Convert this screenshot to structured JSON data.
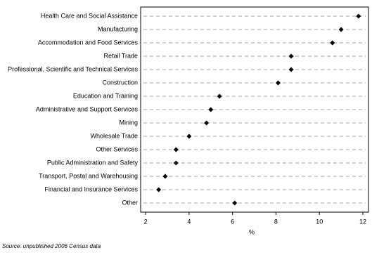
{
  "chart_data": {
    "type": "dot",
    "categories": [
      "Health Care and Social Assistance",
      "Manufacturing",
      "Accommodation and Food Services",
      "Retail Trade",
      "Professional, Scientific and Technical Services",
      "Construction",
      "Education and Training",
      "Administrative and Support Services",
      "Mining",
      "Wholesale Trade",
      "Other Services",
      "Public Administration and Safety",
      "Transport, Postal and Warehousing",
      "Financial and Insurance Services",
      "Other"
    ],
    "values": [
      11.8,
      11.0,
      10.6,
      8.7,
      8.7,
      8.1,
      5.4,
      5.0,
      4.8,
      4.0,
      3.4,
      3.4,
      2.9,
      2.6,
      6.1
    ],
    "color": "#000000",
    "xlabel": "%",
    "xlim": [
      1.77,
      12.26
    ],
    "xticks": [
      2,
      4,
      6,
      8,
      10,
      12
    ],
    "source": "Source: unpublished 2006 Census data"
  }
}
